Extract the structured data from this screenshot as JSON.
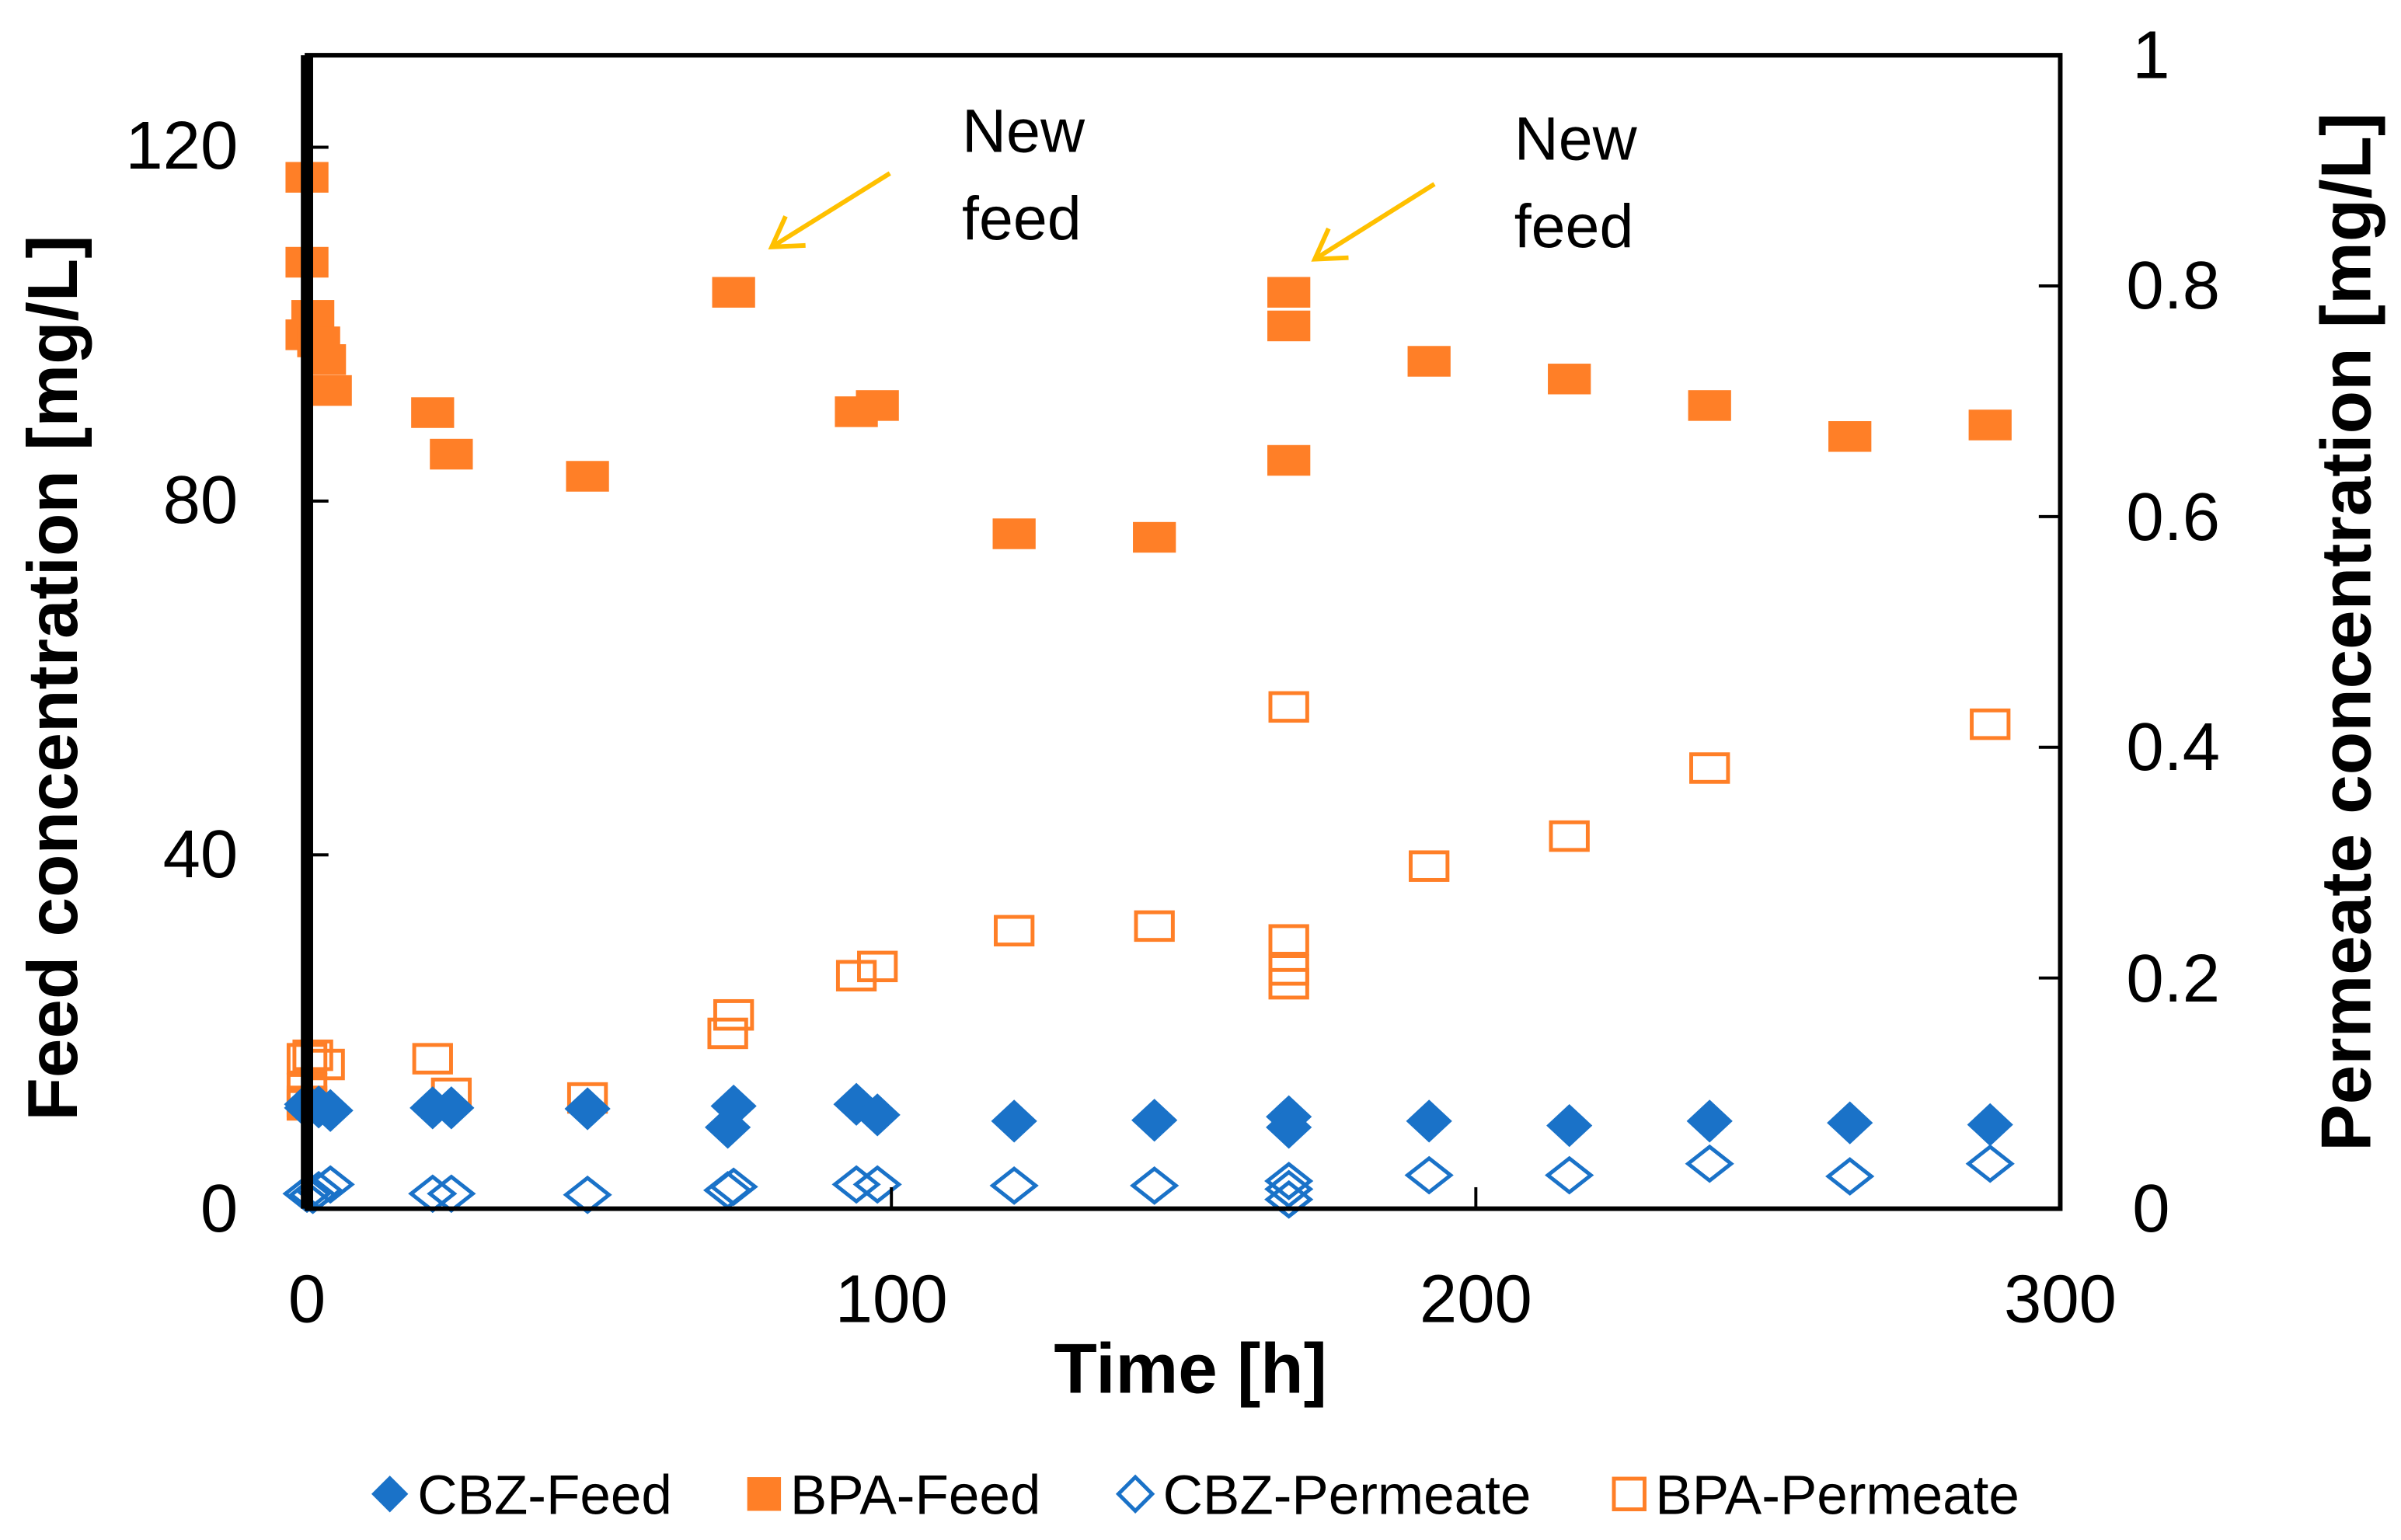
{
  "chart_data": {
    "type": "scatter",
    "xlabel": "Time [h]",
    "ylabel": "Feed concentration [mg/L]",
    "y2label": "Permeate concentration [mg/L]",
    "xlim": [
      0,
      300
    ],
    "ylim": [
      0,
      130
    ],
    "y2lim": [
      0,
      1
    ],
    "xticks": [
      "0",
      "100",
      "200",
      "300"
    ],
    "yticks": [
      "0",
      "40",
      "80",
      "120"
    ],
    "y2ticks": [
      "0",
      "0.2",
      "0.4",
      "0.6",
      "0.8",
      "1"
    ],
    "xtick_values": [
      0,
      100,
      200,
      300
    ],
    "ytick_values": [
      0,
      40,
      80,
      120
    ],
    "y2tick_values": [
      0,
      0.2,
      0.4,
      0.6,
      0.8,
      1
    ],
    "grid": false,
    "legend_position": "bottom",
    "colors": {
      "cbz": "#1A72C8",
      "bpa": "#FF7F27",
      "arrow": "#FFC000"
    },
    "series": [
      {
        "name": "CBZ-Feed",
        "axis": "left",
        "marker": "diamond-filled",
        "x": [
          0,
          0,
          2,
          4,
          21.5,
          24.7,
          48,
          72,
          73,
          94,
          97.6,
          121,
          145,
          168,
          168,
          192,
          216,
          240,
          264,
          288
        ],
        "y": [
          11.8,
          11.4,
          11.5,
          11.1,
          11.4,
          11.4,
          11.3,
          9.2,
          11.6,
          11.8,
          10.6,
          9.9,
          10,
          10.4,
          9.2,
          9.9,
          9.4,
          9.9,
          9.7,
          9.5
        ]
      },
      {
        "name": "BPA-Feed",
        "axis": "left",
        "marker": "square-filled",
        "x": [
          0,
          0,
          0,
          1,
          2,
          3,
          4,
          21.5,
          24.7,
          48,
          73,
          94,
          97.6,
          121,
          145,
          168,
          168,
          168,
          192,
          216,
          240,
          264,
          288
        ],
        "y": [
          116.6,
          107,
          98.8,
          101,
          98,
          96,
          92.5,
          90,
          85.3,
          82.8,
          103.6,
          90.1,
          90.8,
          76.3,
          75.9,
          103.6,
          99.8,
          84.6,
          95.8,
          93.8,
          90.8,
          87.3,
          88.6
        ]
      },
      {
        "name": "CBZ-Permeate",
        "axis": "right",
        "marker": "diamond-open",
        "x": [
          0,
          1,
          2,
          4,
          21.5,
          24.7,
          48,
          72,
          73,
          94,
          97.6,
          121,
          145,
          168,
          168,
          168,
          192,
          216,
          240,
          264,
          288
        ],
        "y": [
          0.013,
          0.012,
          0.016,
          0.021,
          0.013,
          0.013,
          0.012,
          0.016,
          0.019,
          0.021,
          0.021,
          0.02,
          0.02,
          0.024,
          0.017,
          0.008,
          0.029,
          0.029,
          0.039,
          0.028,
          0.039
        ]
      },
      {
        "name": "BPA-Permeate",
        "axis": "right",
        "marker": "square-open",
        "x": [
          0,
          0,
          0,
          0,
          1,
          3,
          21.5,
          24.7,
          48,
          72,
          73,
          94,
          97.6,
          121,
          145,
          168,
          168,
          168,
          168,
          192,
          216,
          240,
          288
        ],
        "y": [
          0.13,
          0.104,
          0.093,
          0.09,
          0.133,
          0.125,
          0.13,
          0.1,
          0.096,
          0.152,
          0.168,
          0.202,
          0.21,
          0.241,
          0.245,
          0.435,
          0.233,
          0.207,
          0.195,
          0.297,
          0.323,
          0.382,
          0.42
        ]
      }
    ],
    "annotations": [
      {
        "line1": "New",
        "line2": "feed",
        "points_to_x": 73,
        "points_to_y": 103.6
      },
      {
        "line1": "New",
        "line2": "feed",
        "points_to_x": 168,
        "points_to_y": 103.6
      }
    ]
  }
}
